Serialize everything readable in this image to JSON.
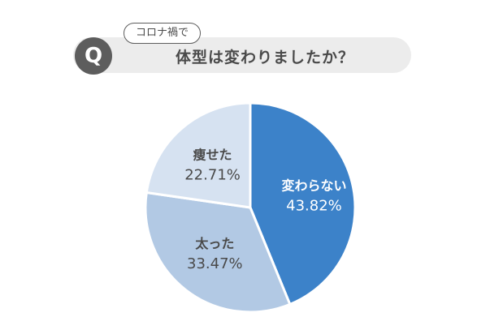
{
  "question": {
    "badge": "Q",
    "context_tag": "コロナ禍で",
    "text": "体型は変わりましたか？"
  },
  "chart_data": {
    "type": "pie",
    "start": "12 o'clock, clockwise",
    "slices": [
      {
        "label": "変わらない",
        "value": 43.82,
        "display": "43.82%",
        "color": "#3c82c9",
        "text_color": "#ffffff"
      },
      {
        "label": "太った",
        "value": 33.47,
        "display": "33.47%",
        "color": "#b2c9e4",
        "text_color": "#4a4a4a"
      },
      {
        "label": "痩せた",
        "value": 22.71,
        "display": "22.71%",
        "color": "#d6e2f1",
        "text_color": "#4a4a4a"
      }
    ]
  }
}
